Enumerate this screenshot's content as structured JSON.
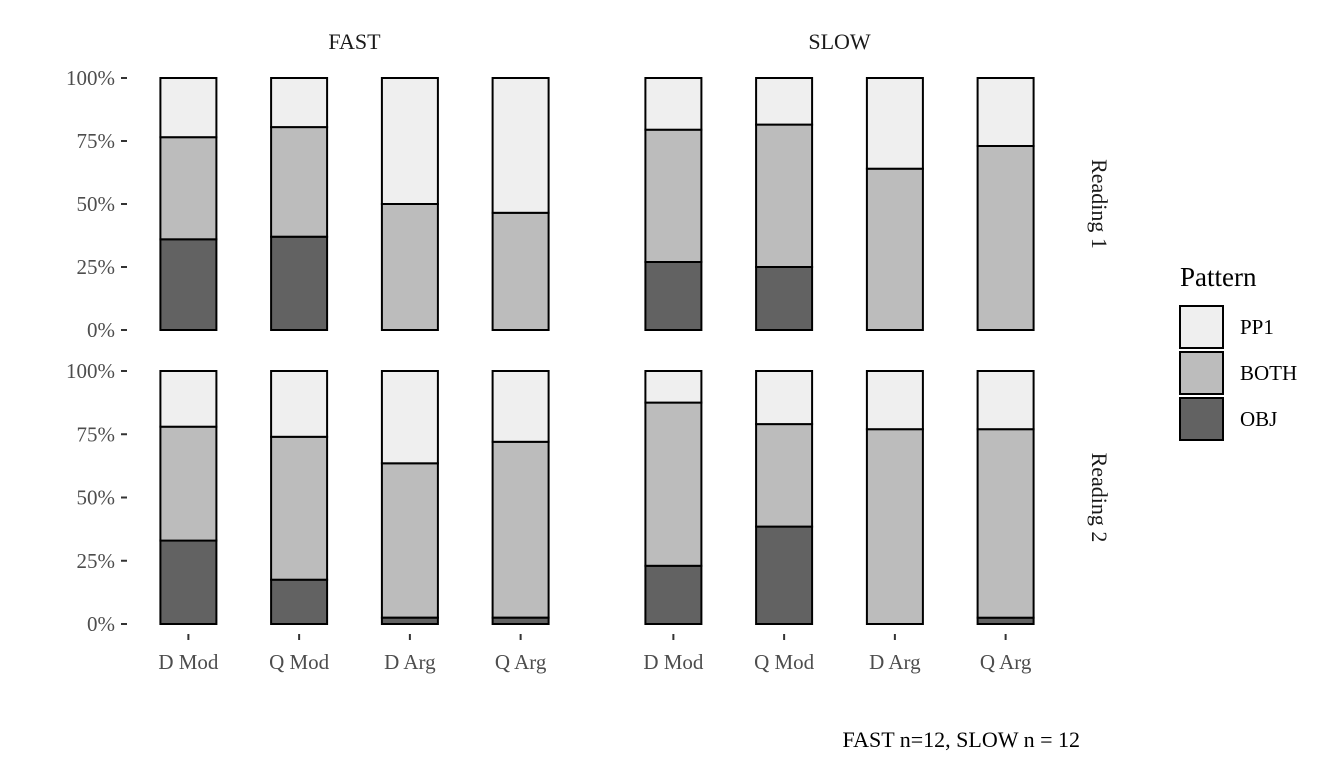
{
  "chart_data": {
    "type": "bar",
    "stacked": "percent",
    "caption": "FAST n=12, SLOW n = 12",
    "legend": {
      "title": "Pattern",
      "placement": "right",
      "entries": [
        {
          "key": "PP1",
          "label": "PP1",
          "color": "#efefef"
        },
        {
          "key": "BOTH",
          "label": "BOTH",
          "color": "#bcbcbc"
        },
        {
          "key": "OBJ",
          "label": "OBJ",
          "color": "#626262"
        }
      ]
    },
    "categories": [
      "D Mod",
      "Q Mod",
      "D Arg",
      "Q Arg"
    ],
    "y_ticks": [
      "0%",
      "25%",
      "50%",
      "75%",
      "100%"
    ],
    "ylim": [
      0,
      100
    ],
    "columns": [
      "FAST",
      "SLOW"
    ],
    "rows": [
      "Reading 1",
      "Reading 2"
    ],
    "panels": [
      {
        "column": "FAST",
        "row": "Reading 1",
        "bars": [
          {
            "category": "D Mod",
            "OBJ": 36,
            "BOTH": 40.5,
            "PP1": 23.5
          },
          {
            "category": "Q Mod",
            "OBJ": 37,
            "BOTH": 43.5,
            "PP1": 19.5
          },
          {
            "category": "D Arg",
            "OBJ": 0,
            "BOTH": 50,
            "PP1": 50
          },
          {
            "category": "Q Arg",
            "OBJ": 0,
            "BOTH": 46.5,
            "PP1": 53.5
          }
        ]
      },
      {
        "column": "SLOW",
        "row": "Reading 1",
        "bars": [
          {
            "category": "D Mod",
            "OBJ": 27,
            "BOTH": 52.5,
            "PP1": 20.5
          },
          {
            "category": "Q Mod",
            "OBJ": 25,
            "BOTH": 56.5,
            "PP1": 18.5
          },
          {
            "category": "D Arg",
            "OBJ": 0,
            "BOTH": 64,
            "PP1": 36
          },
          {
            "category": "Q Arg",
            "OBJ": 0,
            "BOTH": 73,
            "PP1": 27
          }
        ]
      },
      {
        "column": "FAST",
        "row": "Reading 2",
        "bars": [
          {
            "category": "D Mod",
            "OBJ": 33,
            "BOTH": 45,
            "PP1": 22
          },
          {
            "category": "Q Mod",
            "OBJ": 17.5,
            "BOTH": 56.5,
            "PP1": 26
          },
          {
            "category": "D Arg",
            "OBJ": 2.5,
            "BOTH": 61,
            "PP1": 36.5
          },
          {
            "category": "Q Arg",
            "OBJ": 2.5,
            "BOTH": 69.5,
            "PP1": 28
          }
        ]
      },
      {
        "column": "SLOW",
        "row": "Reading 2",
        "bars": [
          {
            "category": "D Mod",
            "OBJ": 23,
            "BOTH": 64.5,
            "PP1": 12.5
          },
          {
            "category": "Q Mod",
            "OBJ": 38.5,
            "BOTH": 40.5,
            "PP1": 21
          },
          {
            "category": "D Arg",
            "OBJ": 0,
            "BOTH": 77,
            "PP1": 23
          },
          {
            "category": "Q Arg",
            "OBJ": 2.5,
            "BOTH": 74.5,
            "PP1": 23
          }
        ]
      }
    ]
  }
}
